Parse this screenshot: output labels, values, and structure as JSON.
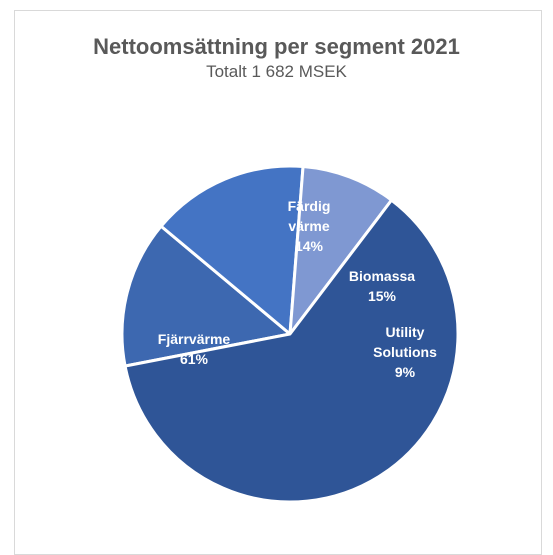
{
  "chart_data": {
    "type": "pie",
    "title": "Nettoomsättning per segment 2021",
    "subtitle": "Totalt 1 682 MSEK",
    "slices": [
      {
        "name": "Färdig värme",
        "label_lines": [
          "Färdig",
          "värme",
          "14%"
        ],
        "percent": 14,
        "color": "#3d68b0"
      },
      {
        "name": "Biomassa",
        "label_lines": [
          "Biomassa",
          "15%"
        ],
        "percent": 15,
        "color": "#4474c4"
      },
      {
        "name": "Utility Solutions",
        "label_lines": [
          "Utility",
          "Solutions",
          "9%"
        ],
        "percent": 9,
        "color": "#7f98d2"
      },
      {
        "name": "Fjärrvärme",
        "label_lines": [
          "Fjärrvärme",
          "61%"
        ],
        "percent": 61,
        "color": "#2f5597"
      }
    ]
  }
}
